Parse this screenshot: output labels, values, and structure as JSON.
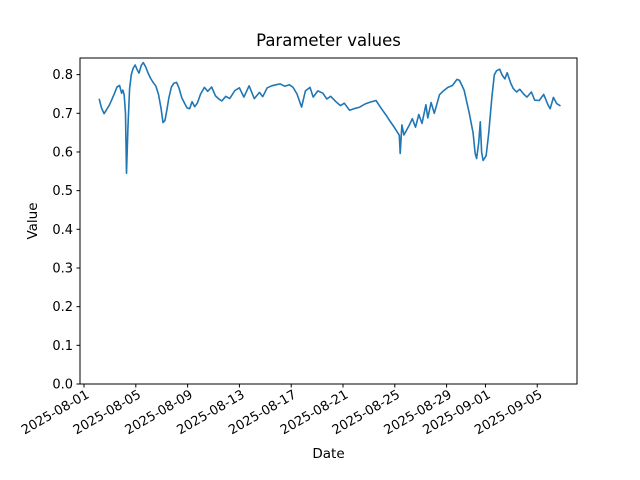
{
  "chart_data": {
    "type": "line",
    "title": "Parameter values",
    "xlabel": "Date",
    "ylabel": "Value",
    "line_color": "#1f77b4",
    "background_color": "#ffffff",
    "grid": false,
    "legend": null,
    "x_unit": "days since 2025-08-01",
    "xlim": [
      -0.31,
      38.07
    ],
    "ylim": [
      0.0,
      0.843
    ],
    "x_ticks": [
      {
        "label": "2025-08-01",
        "day": 0
      },
      {
        "label": "2025-08-05",
        "day": 4
      },
      {
        "label": "2025-08-09",
        "day": 8
      },
      {
        "label": "2025-08-13",
        "day": 12
      },
      {
        "label": "2025-08-17",
        "day": 16
      },
      {
        "label": "2025-08-21",
        "day": 20
      },
      {
        "label": "2025-08-25",
        "day": 24
      },
      {
        "label": "2025-08-29",
        "day": 28
      },
      {
        "label": "2025-09-01",
        "day": 31
      },
      {
        "label": "2025-09-05",
        "day": 35
      }
    ],
    "y_ticks": [
      {
        "label": "0.0",
        "value": 0.0
      },
      {
        "label": "0.1",
        "value": 0.1
      },
      {
        "label": "0.2",
        "value": 0.2
      },
      {
        "label": "0.3",
        "value": 0.3
      },
      {
        "label": "0.4",
        "value": 0.4
      },
      {
        "label": "0.5",
        "value": 0.5
      },
      {
        "label": "0.6",
        "value": 0.6
      },
      {
        "label": "0.7",
        "value": 0.7
      },
      {
        "label": "0.8",
        "value": 0.8
      }
    ],
    "series": [
      {
        "name": "parameter-values",
        "x": [
          1.18,
          1.35,
          1.55,
          1.75,
          1.95,
          2.15,
          2.35,
          2.55,
          2.75,
          2.9,
          3.0,
          3.1,
          3.2,
          3.28,
          3.4,
          3.52,
          3.65,
          3.8,
          3.95,
          4.1,
          4.25,
          4.42,
          4.58,
          4.75,
          4.95,
          5.15,
          5.35,
          5.55,
          5.75,
          5.95,
          6.1,
          6.25,
          6.4,
          6.55,
          6.75,
          6.95,
          7.15,
          7.35,
          7.55,
          7.75,
          7.95,
          8.15,
          8.35,
          8.55,
          8.75,
          9.0,
          9.3,
          9.55,
          9.85,
          10.15,
          10.45,
          10.65,
          10.95,
          11.25,
          11.65,
          12.0,
          12.35,
          12.75,
          13.15,
          13.55,
          13.8,
          14.15,
          14.5,
          14.85,
          15.15,
          15.5,
          15.85,
          16.15,
          16.45,
          16.8,
          17.1,
          17.45,
          17.7,
          18.05,
          18.45,
          18.75,
          19.05,
          19.45,
          19.8,
          20.1,
          20.5,
          20.85,
          21.3,
          21.7,
          22.1,
          22.55,
          22.95,
          23.35,
          23.6,
          23.9,
          24.15,
          24.35,
          24.42,
          24.55,
          24.7,
          24.9,
          25.1,
          25.35,
          25.6,
          25.85,
          26.1,
          26.4,
          26.55,
          26.8,
          27.05,
          27.45,
          27.75,
          28.1,
          28.45,
          28.8,
          29.0,
          29.35,
          29.75,
          30.05,
          30.2,
          30.32,
          30.48,
          30.6,
          30.7,
          30.82,
          31.05,
          31.25,
          31.5,
          31.68,
          31.85,
          32.1,
          32.3,
          32.5,
          32.68,
          32.95,
          33.15,
          33.4,
          33.65,
          33.95,
          34.2,
          34.55,
          34.8,
          35.15,
          35.5,
          35.85,
          36.0,
          36.25,
          36.5,
          36.75
        ],
        "y": [
          0.736,
          0.714,
          0.699,
          0.71,
          0.721,
          0.736,
          0.751,
          0.768,
          0.772,
          0.752,
          0.76,
          0.747,
          0.699,
          0.545,
          0.668,
          0.764,
          0.8,
          0.817,
          0.825,
          0.813,
          0.804,
          0.824,
          0.831,
          0.821,
          0.804,
          0.79,
          0.779,
          0.77,
          0.749,
          0.712,
          0.676,
          0.681,
          0.709,
          0.739,
          0.768,
          0.778,
          0.78,
          0.764,
          0.74,
          0.727,
          0.714,
          0.712,
          0.73,
          0.717,
          0.726,
          0.75,
          0.767,
          0.757,
          0.768,
          0.745,
          0.736,
          0.732,
          0.744,
          0.738,
          0.759,
          0.766,
          0.742,
          0.771,
          0.738,
          0.754,
          0.743,
          0.766,
          0.771,
          0.774,
          0.776,
          0.77,
          0.774,
          0.767,
          0.75,
          0.716,
          0.758,
          0.767,
          0.742,
          0.758,
          0.752,
          0.737,
          0.744,
          0.73,
          0.72,
          0.726,
          0.708,
          0.712,
          0.716,
          0.724,
          0.729,
          0.733,
          0.713,
          0.694,
          0.681,
          0.667,
          0.654,
          0.643,
          0.596,
          0.67,
          0.644,
          0.656,
          0.668,
          0.686,
          0.664,
          0.697,
          0.674,
          0.722,
          0.688,
          0.728,
          0.7,
          0.748,
          0.758,
          0.767,
          0.772,
          0.788,
          0.785,
          0.76,
          0.7,
          0.649,
          0.597,
          0.583,
          0.624,
          0.678,
          0.6,
          0.578,
          0.59,
          0.648,
          0.742,
          0.799,
          0.81,
          0.814,
          0.798,
          0.789,
          0.805,
          0.778,
          0.764,
          0.755,
          0.762,
          0.75,
          0.742,
          0.755,
          0.734,
          0.733,
          0.749,
          0.72,
          0.712,
          0.741,
          0.725,
          0.72
        ]
      }
    ]
  }
}
